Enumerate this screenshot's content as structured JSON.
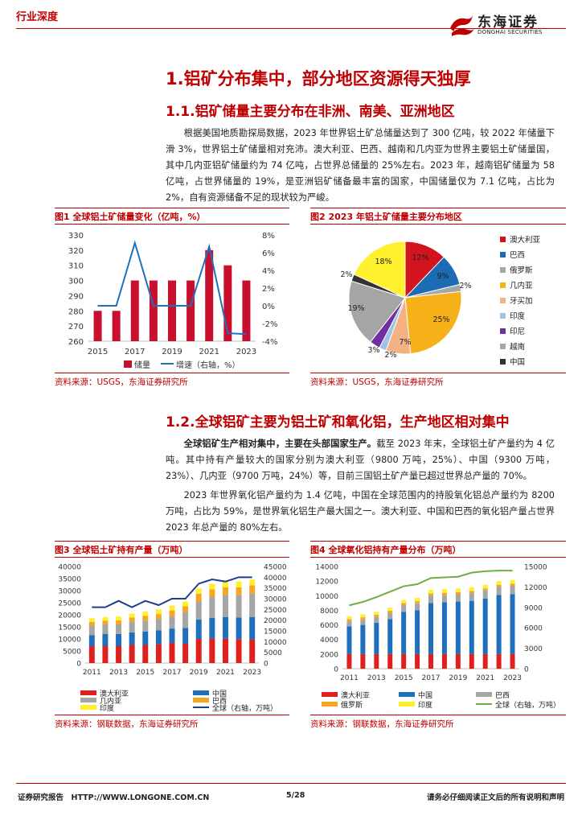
{
  "header": {
    "tag": "行业深度",
    "logo_cn": "东海证券",
    "logo_en": "DONGHAI SECURITIES"
  },
  "section1": {
    "title": "1.铝矿分布集中，部分地区资源得天独厚"
  },
  "section11": {
    "title": "1.1.铝矿储量主要分布在非洲、南美、亚洲地区",
    "para": "根据美国地质勘探局数据，2023 年世界铝土矿总储量达到了 300 亿吨，较 2022 年储量下滑 3%，世界铝土矿储量相对充沛。澳大利亚、巴西、越南和几内亚为世界主要铝土矿储量国，其中几内亚铝矿储量约为 74 亿吨，占世界总储量的 25%左右。2023 年，越南铝矿储量为 58 亿吨，占世界储量的 19%，是亚洲铝矿储备最丰富的国家，中国储量仅为 7.1 亿吨，占比为 2%，自有资源储备不足的现状较为严峻。"
  },
  "fig1": {
    "title": "图1 全球铝土矿储量变化（亿吨，%）",
    "source": "资料来源：USGS，东海证券研究所"
  },
  "fig2": {
    "title": "图2 2023 年铝土矿储量主要分布地区",
    "source": "资料来源：USGS，东海证券研究所"
  },
  "section12": {
    "title": "1.2.全球铝矿主要为铝土矿和氧化铝，生产地区相对集中",
    "para1_bold": "全球铝矿生产相对集中，主要在头部国家生产。",
    "para1_rest": "截至 2023 年末，全球铝土矿产量约为 4 亿吨。其中持有产量较大的国家分别为澳大利亚（9800 万吨，25%）、中国（9300 万吨，23%）、几内亚（9700 万吨，24%）等，目前三国铝土矿产量已超过世界总产量的 70%。",
    "para2": "2023 年世界氧化铝产量约为 1.4 亿吨，中国在全球范围内的持股氧化铝总产量约为 8200 万吨，占比为 59%，是世界氧化铝生产最大国之一。澳大利亚、中国和巴西的氧化铝产量占世界 2023 年总产量的 80%左右。"
  },
  "fig3": {
    "title": "图3 全球铝土矿持有产量（万吨）",
    "source": "资料来源：钢联数据，东海证券研究所"
  },
  "fig4": {
    "title": "图4 全球氧化铝持有产量分布（万吨）",
    "source": "资料来源：钢联数据，东海证券研究所"
  },
  "footer": {
    "left": "证券研究报告　HTTP://WWW.LONGONE.COM.CN",
    "page": "5/28",
    "right": "请务必仔细阅读正文后的所有说明和声明"
  },
  "chart_data": [
    {
      "type": "bar",
      "title": "",
      "years": [
        2015,
        2016,
        2017,
        2018,
        2019,
        2020,
        2021,
        2022,
        2023
      ],
      "x_ticks": [
        "2015",
        "2017",
        "2019",
        "2021",
        "2023"
      ],
      "series": [
        {
          "name": "储量",
          "values": [
            280,
            280,
            300,
            300,
            300,
            300,
            320,
            310,
            300
          ],
          "color": "#c8102e",
          "axis": "left"
        },
        {
          "name": "增速（右轴，%）",
          "values": [
            0,
            0,
            7.1,
            0,
            0,
            0,
            6.7,
            -3.1,
            -3.2
          ],
          "color": "#1f6fbf",
          "axis": "right"
        }
      ],
      "ylim": [
        260,
        330
      ],
      "yticks": [
        260,
        270,
        280,
        290,
        300,
        310,
        320,
        330
      ],
      "y2lim": [
        -4,
        8
      ],
      "y2ticks": [
        "8%",
        "6%",
        "4%",
        "2%",
        "0%",
        "-2%",
        "-4%"
      ],
      "legend": "bottom"
    },
    {
      "type": "pie",
      "title": "",
      "slices": [
        {
          "name": "澳大利亚",
          "value": 12,
          "label": "12%",
          "color": "#d3141f"
        },
        {
          "name": "巴西",
          "value": 9,
          "label": "9%",
          "color": "#1c6bb5"
        },
        {
          "name": "俄罗斯",
          "value": 2,
          "label": "2%",
          "color": "#a6a6a6"
        },
        {
          "name": "几内亚",
          "value": 25,
          "label": "25%",
          "color": "#f6b119"
        },
        {
          "name": "牙买加",
          "value": 7,
          "label": "7%",
          "color": "#f4b183"
        },
        {
          "name": "印度",
          "value": 2,
          "label": "2%",
          "color": "#9dc3e6"
        },
        {
          "name": "印尼",
          "value": 3,
          "label": "3%",
          "color": "#7030a0"
        },
        {
          "name": "越南",
          "value": 19,
          "label": "19%",
          "color": "#a5a5a5"
        },
        {
          "name": "中国",
          "value": 2,
          "label": "2%",
          "color": "#333333"
        },
        {
          "name": "",
          "value": 18,
          "label": "18%",
          "color": "#fff12e"
        }
      ],
      "legend": "right"
    },
    {
      "type": "bar",
      "title": "",
      "years": [
        2011,
        2012,
        2013,
        2014,
        2015,
        2016,
        2017,
        2018,
        2019,
        2020,
        2021,
        2022,
        2023
      ],
      "x_ticks": [
        "2011",
        "2013",
        "2015",
        "2017",
        "2019",
        "2021",
        "2023"
      ],
      "stack_series": [
        {
          "name": "澳大利亚",
          "color": "#e0201f",
          "values": [
            7000,
            7000,
            7000,
            7500,
            7500,
            7800,
            8300,
            8000,
            10000,
            10200,
            10100,
            9900,
            9800
          ]
        },
        {
          "name": "中国",
          "color": "#1e6fbe",
          "values": [
            4500,
            5000,
            5000,
            5200,
            5600,
            5800,
            6000,
            6500,
            8000,
            8500,
            9000,
            9000,
            9300
          ]
        },
        {
          "name": "几内亚",
          "color": "#a5a5a5",
          "values": [
            4000,
            4000,
            4000,
            4500,
            4500,
            4700,
            5000,
            6500,
            7500,
            8600,
            9000,
            9200,
            9700
          ]
        },
        {
          "name": "巴西",
          "color": "#f5a623",
          "values": [
            1500,
            1500,
            1700,
            1700,
            2000,
            2000,
            2500,
            2500,
            3200,
            3300,
            3300,
            3300,
            3400
          ]
        },
        {
          "name": "印度",
          "color": "#fff02a",
          "values": [
            1600,
            1600,
            1600,
            1600,
            1700,
            1900,
            2000,
            2000,
            2200,
            2200,
            2300,
            2400,
            2400
          ]
        }
      ],
      "line_series": {
        "name": "全球（右轴，万吨）",
        "color": "#1f3f8f",
        "values": [
          26000,
          26000,
          29000,
          26000,
          29000,
          27000,
          30000,
          30000,
          37000,
          39000,
          38000,
          40000,
          40000
        ]
      },
      "ylim": [
        0,
        40000
      ],
      "yticks": [
        0,
        5000,
        10000,
        15000,
        20000,
        25000,
        30000,
        35000,
        40000
      ],
      "y2lim": [
        0,
        45000
      ],
      "y2ticks": [
        0,
        5000,
        10000,
        15000,
        20000,
        25000,
        30000,
        35000,
        40000,
        45000
      ],
      "legend": "bottom"
    },
    {
      "type": "bar",
      "title": "",
      "years": [
        2011,
        2012,
        2013,
        2014,
        2015,
        2016,
        2017,
        2018,
        2019,
        2020,
        2021,
        2022,
        2023
      ],
      "x_ticks": [
        "2011",
        "2013",
        "2015",
        "2017",
        "2019",
        "2021",
        "2023"
      ],
      "stack_series": [
        {
          "name": "澳大利亚",
          "color": "#e0201f",
          "values": [
            2000,
            2000,
            2000,
            2000,
            2000,
            2000,
            2000,
            2000,
            2000,
            2000,
            2000,
            2000,
            2000
          ]
        },
        {
          "name": "中国",
          "color": "#1e6fbe",
          "values": [
            3800,
            4000,
            4300,
            4800,
            5800,
            6000,
            7000,
            7100,
            7200,
            7300,
            7600,
            8100,
            8200
          ]
        },
        {
          "name": "巴西",
          "color": "#a5a5a5",
          "values": [
            700,
            750,
            800,
            850,
            900,
            950,
            1000,
            1000,
            1000,
            1050,
            1100,
            1100,
            1150
          ]
        },
        {
          "name": "俄罗斯",
          "color": "#f5a623",
          "values": [
            300,
            300,
            300,
            300,
            300,
            300,
            300,
            300,
            300,
            300,
            300,
            300,
            300
          ]
        },
        {
          "name": "印度",
          "color": "#fff02a",
          "values": [
            400,
            400,
            400,
            400,
            400,
            450,
            500,
            500,
            500,
            500,
            500,
            500,
            500
          ]
        }
      ],
      "line_series": {
        "name": "全球（右轴，万吨）",
        "color": "#6fae3f",
        "values": [
          9300,
          9800,
          10500,
          11300,
          12100,
          12400,
          13300,
          13400,
          13500,
          14100,
          14300,
          14400,
          14400
        ]
      },
      "ylim": [
        0,
        14000
      ],
      "yticks": [
        0,
        2000,
        4000,
        6000,
        8000,
        10000,
        12000,
        14000
      ],
      "y2lim": [
        0,
        15000
      ],
      "y2ticks": [
        0,
        3000,
        6000,
        9000,
        12000,
        15000
      ],
      "legend": "bottom"
    }
  ]
}
